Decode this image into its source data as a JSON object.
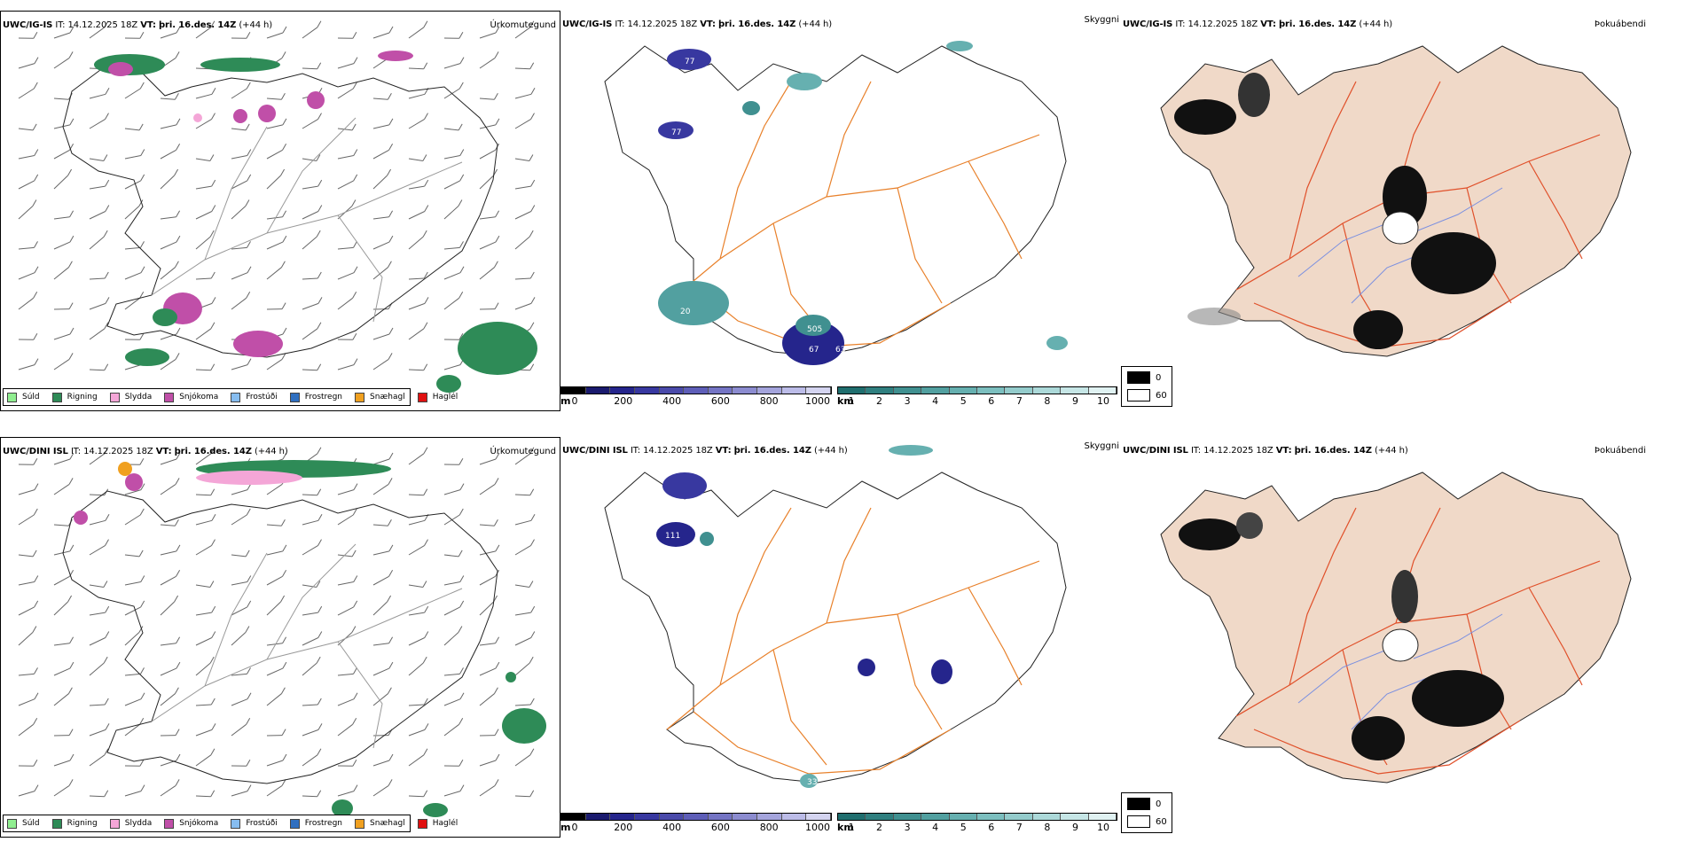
{
  "header": {
    "it_label": "IT:",
    "it_value": "14.12.2025 18Z",
    "vt_label": "VT:",
    "vt_value": "þri. 16.des. 14Z",
    "lead": "(+44 h)"
  },
  "rows": [
    {
      "model": "UWC/IG-IS",
      "precip_type_title": "Úrkomutegund",
      "visibility_title": "Skyggni",
      "fog_title": "Þokuábendi",
      "labels": [
        "77",
        "10",
        "77",
        "505",
        "67",
        "63",
        "20"
      ]
    },
    {
      "model": "UWC/DINI ISL",
      "precip_type_title": "Úrkomutegund",
      "visibility_title": "Skyggni",
      "fog_title": "Þokuábendi",
      "labels": [
        "111",
        "33"
      ]
    }
  ],
  "precip_legend": [
    {
      "label": "Súld",
      "color": "#90ee90"
    },
    {
      "label": "Rigning",
      "color": "#2e8b57"
    },
    {
      "label": "Slydda",
      "color": "#f4a6d7"
    },
    {
      "label": "Snjókoma",
      "color": "#c04fa8"
    },
    {
      "label": "Frostúði",
      "color": "#87bdf0"
    },
    {
      "label": "Frostregn",
      "color": "#2f6fc0"
    },
    {
      "label": "Snæhagl",
      "color": "#f0a020"
    },
    {
      "label": "Haglél",
      "color": "#e01010"
    }
  ],
  "ceiling_bar": {
    "unit": "m",
    "ticks": [
      "0",
      "200",
      "400",
      "600",
      "800",
      "1000"
    ],
    "colors": [
      "#000000",
      "#1a1a6e",
      "#25258c",
      "#3838a0",
      "#4a4aaa",
      "#5e5eb8",
      "#7474c4",
      "#8c8cd0",
      "#a4a4dc",
      "#bcbce8",
      "#d4d4f0"
    ]
  },
  "visibility_bar": {
    "unit": "km",
    "ticks": [
      "1",
      "2",
      "3",
      "4",
      "5",
      "6",
      "7",
      "8",
      "9",
      "10"
    ],
    "colors": [
      "#1f6e6e",
      "#2f7f7f",
      "#409090",
      "#52a0a0",
      "#66b0b0",
      "#7cbfbf",
      "#94cccc",
      "#acd9d9",
      "#c6e6e6",
      "#e0f2f2"
    ]
  },
  "fog_legend": {
    "black": "0",
    "white": "60"
  },
  "colors": {
    "road": "#e8802a",
    "road_red": "#e0502a",
    "land_fog": "#f0d9c8",
    "river": "#7a8fe0"
  }
}
